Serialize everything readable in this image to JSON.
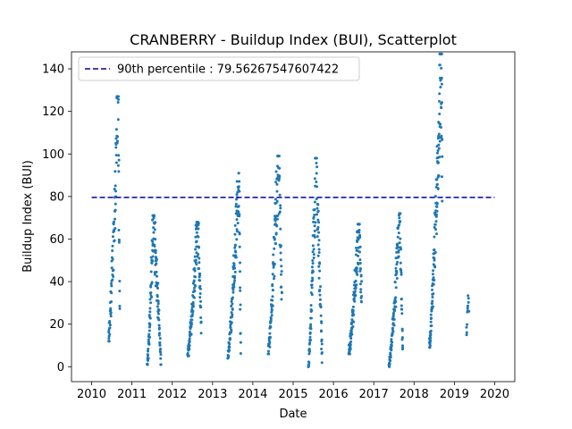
{
  "chart_data": {
    "type": "scatter",
    "title": "CRANBERRY - Buildup Index (BUI), Scatterplot",
    "xlabel": "Date",
    "ylabel": "Buildup Index (BUI)",
    "xlim": [
      2009.5,
      2020.5
    ],
    "ylim": [
      -7,
      148
    ],
    "x_ticks": [
      "2010",
      "2011",
      "2012",
      "2013",
      "2014",
      "2015",
      "2016",
      "2017",
      "2018",
      "2019",
      "2020"
    ],
    "y_ticks": [
      "0",
      "20",
      "40",
      "60",
      "80",
      "100",
      "120",
      "140"
    ],
    "legend_position": "top-left",
    "legend_label": "90th percentile : 79.56267547607422",
    "reference_line": {
      "y": 79.56,
      "x_range": [
        2010.0,
        2020.0
      ],
      "color": "#0000aa",
      "style": "dashed"
    },
    "point_color": "#1f77b4",
    "seasons": [
      {
        "year": 2010,
        "x_range": [
          2010.42,
          2010.7
        ],
        "y_min": 12,
        "y_peak": 127,
        "peak_at": 0.85,
        "end": 25,
        "n": 95
      },
      {
        "year": 2011,
        "x_range": [
          2011.38,
          2011.72
        ],
        "y_min": 1,
        "y_peak": 71,
        "peak_at": 0.45,
        "end": 2,
        "n": 130
      },
      {
        "year": 2012,
        "x_range": [
          2012.38,
          2012.72
        ],
        "y_min": 5,
        "y_peak": 68,
        "peak_at": 0.75,
        "end": 18,
        "n": 125
      },
      {
        "year": 2013,
        "x_range": [
          2013.38,
          2013.7
        ],
        "y_min": 4,
        "y_peak": 91,
        "peak_at": 0.85,
        "end": 5,
        "n": 125
      },
      {
        "year": 2014,
        "x_range": [
          2014.38,
          2014.72
        ],
        "y_min": 6,
        "y_peak": 99,
        "peak_at": 0.75,
        "end": 35,
        "n": 115
      },
      {
        "year": 2015,
        "x_range": [
          2015.38,
          2015.72
        ],
        "y_min": 0,
        "y_peak": 98,
        "peak_at": 0.55,
        "end": 4,
        "n": 125
      },
      {
        "year": 2016,
        "x_range": [
          2016.38,
          2016.7
        ],
        "y_min": 6,
        "y_peak": 67,
        "peak_at": 0.8,
        "end": 30,
        "n": 125
      },
      {
        "year": 2017,
        "x_range": [
          2017.38,
          2017.72
        ],
        "y_min": 0,
        "y_peak": 72,
        "peak_at": 0.8,
        "end": 5,
        "n": 125
      },
      {
        "year": 2018,
        "x_range": [
          2018.38,
          2018.7
        ],
        "y_min": 9,
        "y_peak": 147,
        "peak_at": 0.92,
        "end": 95,
        "n": 140
      },
      {
        "year": 2019,
        "x_range": [
          2019.3,
          2019.36
        ],
        "y_min": 15,
        "y_peak": 34,
        "peak_at": 0.9,
        "end": 28,
        "n": 12
      }
    ]
  }
}
